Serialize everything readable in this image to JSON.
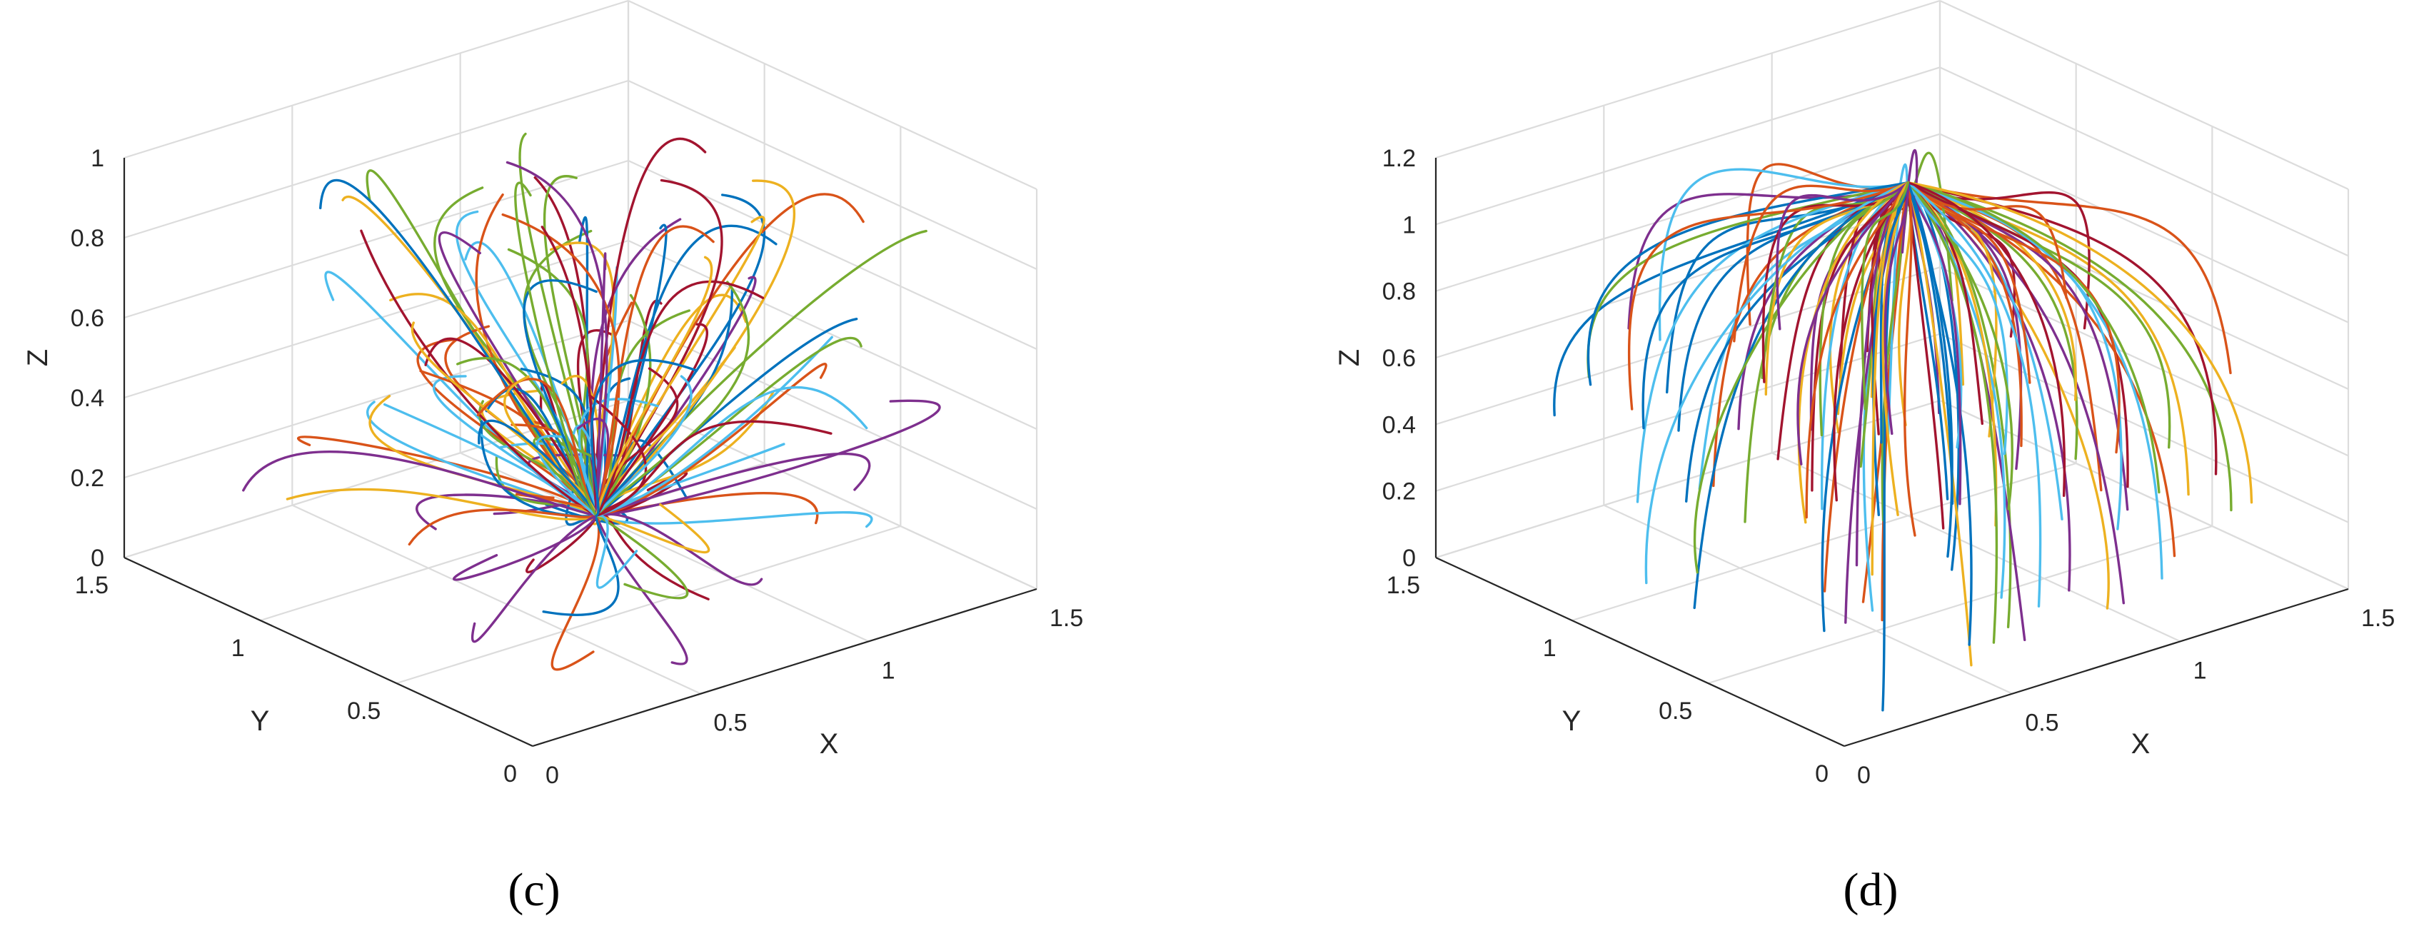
{
  "colors": {
    "series": [
      "#0072BD",
      "#D95319",
      "#EDB120",
      "#7E2F8E",
      "#77AC30",
      "#4DBEEE",
      "#A2142F"
    ],
    "grid": "#dcdcdc",
    "axis": "#262626"
  },
  "chart_data": [
    {
      "type": "line",
      "panel_label": "(c)",
      "title": "",
      "xlabel": "X",
      "ylabel": "Y",
      "zlabel": "Z",
      "xlim": [
        0,
        1.5
      ],
      "ylim": [
        0,
        1.5
      ],
      "zlim": [
        0,
        1
      ],
      "x_ticks": [
        "0",
        "0.5",
        "1",
        "1.5"
      ],
      "y_ticks": [
        "0",
        "0.5",
        "1",
        "1.5"
      ],
      "z_ticks": [
        "0",
        "0.2",
        "0.4",
        "0.6",
        "0.8",
        "1"
      ],
      "grid": true,
      "legend": "none",
      "series_description_values": {
        "convergence_point": [
          1.0,
          1.0,
          0.0
        ],
        "trajectory_count": 120,
        "pattern": "trajectories from scattered start points converging to a single point"
      }
    },
    {
      "type": "line",
      "panel_label": "(d)",
      "title": "",
      "xlabel": "X",
      "ylabel": "Y",
      "zlabel": "Z",
      "xlim": [
        0,
        1.5
      ],
      "ylim": [
        0,
        1.5
      ],
      "zlim": [
        0,
        1.2
      ],
      "x_ticks": [
        "0",
        "0.5",
        "1",
        "1.5"
      ],
      "y_ticks": [
        "0",
        "0.5",
        "1",
        "1.5"
      ],
      "z_ticks": [
        "0",
        "0.2",
        "0.4",
        "0.6",
        "0.8",
        "1",
        "1.2"
      ],
      "grid": true,
      "legend": "none",
      "series_description_values": {
        "convergence_point": [
          1.0,
          1.0,
          1.0
        ],
        "trajectory_count": 110,
        "pattern": "trajectories from scattered start points converging upward to a single point"
      }
    }
  ]
}
